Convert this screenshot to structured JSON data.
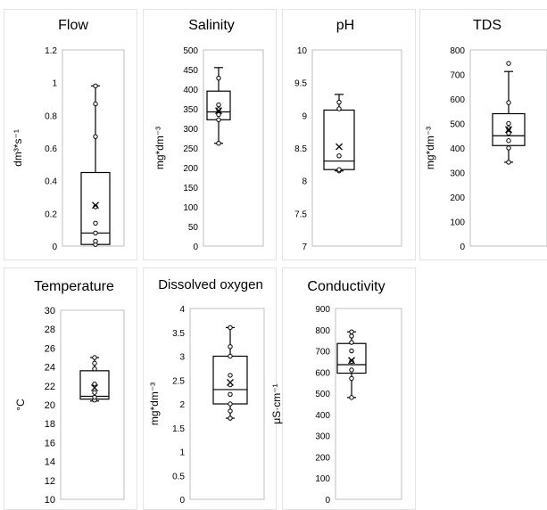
{
  "chart_data": [
    {
      "type": "box",
      "title": "Flow",
      "ylabel": "dm³*s⁻¹",
      "ylim": [
        0,
        1.2
      ],
      "yticks": [
        "0",
        "0.2",
        "0.4",
        "0.6",
        "0.8",
        "1",
        "1.2"
      ],
      "box": {
        "min": 0.01,
        "q1": 0.01,
        "median": 0.08,
        "q3": 0.45,
        "max": 0.98,
        "mean": 0.25
      },
      "points": [
        0.01,
        0.03,
        0.08,
        0.14,
        0.24,
        0.67,
        0.87,
        0.98
      ]
    },
    {
      "type": "box",
      "title": "Salinity",
      "ylabel": "mg*dm⁻³",
      "ylim": [
        0,
        500
      ],
      "yticks": [
        "0",
        "50",
        "100",
        "150",
        "200",
        "250",
        "300",
        "350",
        "400",
        "450",
        "500"
      ],
      "box": {
        "min": 262,
        "q1": 322,
        "median": 342,
        "q3": 395,
        "max": 455,
        "mean": 345
      },
      "points": [
        262,
        322,
        335,
        348,
        360,
        428
      ]
    },
    {
      "type": "box",
      "title": "pH",
      "ylabel": "",
      "ylim": [
        7,
        10
      ],
      "yticks": [
        "7",
        "7.5",
        "8",
        "8.5",
        "9",
        "9.5",
        "10"
      ],
      "box": {
        "min": 8.15,
        "q1": 8.17,
        "median": 8.3,
        "q3": 9.08,
        "max": 9.32,
        "mean": 8.52
      },
      "points": [
        8.15,
        8.17,
        8.38,
        9.1,
        9.2
      ]
    },
    {
      "type": "box",
      "title": "TDS",
      "ylabel": "mg*dm⁻³",
      "ylim": [
        0,
        800
      ],
      "yticks": [
        "0",
        "100",
        "200",
        "300",
        "400",
        "500",
        "600",
        "700",
        "800"
      ],
      "box": {
        "min": 342,
        "q1": 410,
        "median": 450,
        "q3": 540,
        "max": 712,
        "mean": 475
      },
      "points": [
        342,
        400,
        430,
        460,
        480,
        500,
        585,
        745
      ]
    },
    {
      "type": "box",
      "title": "Temperature",
      "ylabel": "°C",
      "ylim": [
        10,
        30
      ],
      "yticks": [
        "10",
        "12",
        "14",
        "16",
        "18",
        "20",
        "22",
        "24",
        "26",
        "28",
        "30"
      ],
      "box": {
        "min": 20.4,
        "q1": 20.6,
        "median": 20.9,
        "q3": 23.6,
        "max": 25.0,
        "mean": 21.8
      },
      "points": [
        20.5,
        20.8,
        21.3,
        22.2,
        23.8,
        24.4,
        25.0
      ]
    },
    {
      "type": "box",
      "title": "Dissolved oxygen",
      "ylabel": "mg*dm⁻³",
      "ylim": [
        0,
        4
      ],
      "yticks": [
        "0",
        "0.5",
        "1",
        "1.5",
        "2",
        "2.5",
        "3",
        "3.5",
        "4"
      ],
      "box": {
        "min": 1.7,
        "q1": 2.0,
        "median": 2.3,
        "q3": 3.0,
        "max": 3.6,
        "mean": 2.45
      },
      "points": [
        1.7,
        1.85,
        2.0,
        2.2,
        2.4,
        2.6,
        3.0,
        3.2,
        3.6
      ]
    },
    {
      "type": "box",
      "title": "Conductivity",
      "ylabel": "μS·cm⁻¹",
      "ylim": [
        0,
        900
      ],
      "yticks": [
        "0",
        "100",
        "200",
        "300",
        "400",
        "500",
        "600",
        "700",
        "800",
        "900"
      ],
      "box": {
        "min": 480,
        "q1": 595,
        "median": 635,
        "q3": 735,
        "max": 790,
        "mean": 655
      },
      "points": [
        480,
        570,
        610,
        650,
        700,
        740,
        770,
        790
      ]
    }
  ]
}
